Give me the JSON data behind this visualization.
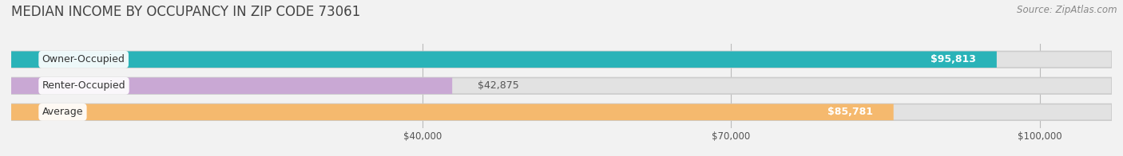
{
  "title": "MEDIAN INCOME BY OCCUPANCY IN ZIP CODE 73061",
  "source": "Source: ZipAtlas.com",
  "categories": [
    "Owner-Occupied",
    "Renter-Occupied",
    "Average"
  ],
  "values": [
    95813,
    42875,
    85781
  ],
  "bar_colors": [
    "#2ab3b8",
    "#c9a8d4",
    "#f5b96e"
  ],
  "value_labels": [
    "$95,813",
    "$42,875",
    "$85,781"
  ],
  "x_ticks": [
    40000,
    70000,
    100000
  ],
  "x_tick_labels": [
    "$40,000",
    "$70,000",
    "$100,000"
  ],
  "x_max": 107000,
  "background_color": "#f2f2f2",
  "bar_background_color": "#e2e2e2",
  "title_fontsize": 12,
  "source_fontsize": 8.5,
  "label_fontsize": 9,
  "value_fontsize": 9
}
